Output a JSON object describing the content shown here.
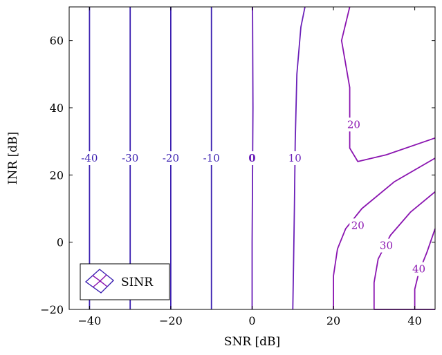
{
  "chart_data": {
    "type": "contour",
    "xlabel": "SNR [dB]",
    "ylabel": "INR [dB]",
    "xlim": [
      -45,
      45
    ],
    "ylim": [
      -20,
      70
    ],
    "x_ticks": [
      "−40",
      "−20",
      "0",
      "20",
      "40"
    ],
    "x_tick_values": [
      -40,
      -20,
      0,
      20,
      40
    ],
    "y_ticks": [
      "−20",
      "0",
      "20",
      "40",
      "60"
    ],
    "y_tick_values": [
      -20,
      0,
      20,
      40,
      60
    ],
    "grid": false,
    "legend": {
      "entries": [
        "SINR"
      ],
      "placement": "bottom-left"
    },
    "colors": {
      "low": "#3a1fb0",
      "mid": "#6a1fb8",
      "high": "#8a14b0"
    },
    "series": [
      {
        "level": -40,
        "label": "-40",
        "points": [
          [
            -40,
            -20
          ],
          [
            -40,
            70
          ]
        ]
      },
      {
        "level": -30,
        "label": "-30",
        "points": [
          [
            -30,
            -20
          ],
          [
            -30,
            70
          ]
        ]
      },
      {
        "level": -20,
        "label": "-20",
        "points": [
          [
            -20,
            -20
          ],
          [
            -20,
            70
          ]
        ]
      },
      {
        "level": -10,
        "label": "-10",
        "points": [
          [
            -10,
            -20
          ],
          [
            -10,
            70
          ]
        ]
      },
      {
        "level": 0,
        "label": "0",
        "points": [
          [
            0,
            -20
          ],
          [
            0,
            0
          ],
          [
            0.1,
            20
          ],
          [
            0.2,
            40
          ],
          [
            0.1,
            70
          ]
        ]
      },
      {
        "level": 10,
        "label": "10",
        "points": [
          [
            10,
            -20
          ],
          [
            10.2,
            -5
          ],
          [
            10.4,
            10
          ],
          [
            10.6,
            30
          ],
          [
            11,
            50
          ],
          [
            12,
            64
          ],
          [
            13,
            70
          ]
        ]
      },
      {
        "level": 20,
        "label": "20",
        "points": [
          [
            24,
            70
          ],
          [
            22,
            60
          ],
          [
            24,
            46
          ],
          [
            24,
            28
          ],
          [
            26,
            24
          ],
          [
            33,
            26
          ],
          [
            45,
            31
          ]
        ]
      },
      {
        "level": 20,
        "label": "20",
        "points": [
          [
            20,
            -20
          ],
          [
            20,
            -10
          ],
          [
            21,
            -2
          ],
          [
            23,
            4
          ],
          [
            27,
            10
          ],
          [
            35,
            18
          ],
          [
            45,
            25
          ]
        ]
      },
      {
        "level": 30,
        "label": "30",
        "points": [
          [
            30,
            -20
          ],
          [
            30,
            -12
          ],
          [
            31,
            -5
          ],
          [
            34,
            2
          ],
          [
            39,
            9
          ],
          [
            45,
            15
          ]
        ]
      },
      {
        "level": 40,
        "label": "40",
        "points": [
          [
            40,
            -20
          ],
          [
            40,
            -14
          ],
          [
            41,
            -9
          ],
          [
            43,
            -3
          ],
          [
            45,
            4
          ]
        ]
      },
      {
        "level": 40,
        "label": "",
        "points": [
          [
            30,
            -20
          ],
          [
            45,
            -20
          ]
        ]
      }
    ],
    "labels": [
      {
        "text": "-40",
        "x": -40,
        "y": 25
      },
      {
        "text": "-30",
        "x": -30,
        "y": 25
      },
      {
        "text": "-20",
        "x": -20,
        "y": 25
      },
      {
        "text": "-10",
        "x": -10,
        "y": 25
      },
      {
        "text": "0",
        "x": 0,
        "y": 25
      },
      {
        "text": "10",
        "x": 10.5,
        "y": 25
      },
      {
        "text": "20",
        "x": 25,
        "y": 35
      },
      {
        "text": "20",
        "x": 26,
        "y": 5
      },
      {
        "text": "30",
        "x": 33,
        "y": -1
      },
      {
        "text": "40",
        "x": 41,
        "y": -8
      }
    ]
  }
}
